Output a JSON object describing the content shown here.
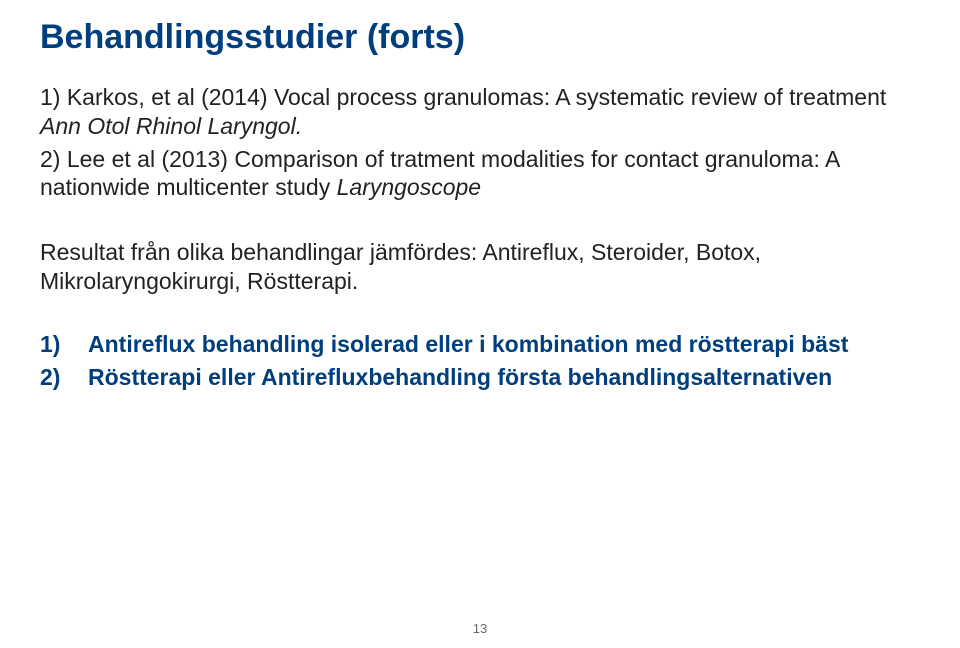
{
  "title": "Behandlingsstudier (forts)",
  "refs": [
    {
      "num": "1)",
      "plain": " Karkos, et al (2014) Vocal process granulomas: A systematic review of treatment ",
      "ital": "Ann Otol Rhinol Laryngol."
    },
    {
      "num": "2)",
      "plain": " Lee et al (2013) Comparison of tratment modalities for contact granuloma: A nationwide multicenter study ",
      "ital": "Laryngoscope"
    }
  ],
  "result_text": "Resultat från olika behandlingar jämfördes: Antireflux, Steroider, Botox, Mikrolaryngokirurgi, Röstterapi.",
  "list": [
    {
      "num": "1)",
      "text": "Antireflux behandling isolerad eller i kombination med röstterapi bäst"
    },
    {
      "num": "2)",
      "text": "Röstterapi eller Antirefluxbehandling första behandlingsalternativen"
    }
  ],
  "page_number": "13",
  "colors": {
    "title": "#003e7e",
    "body": "#222222",
    "list": "#003e7e",
    "background": "#ffffff",
    "pagenum": "#6a6a6a"
  }
}
